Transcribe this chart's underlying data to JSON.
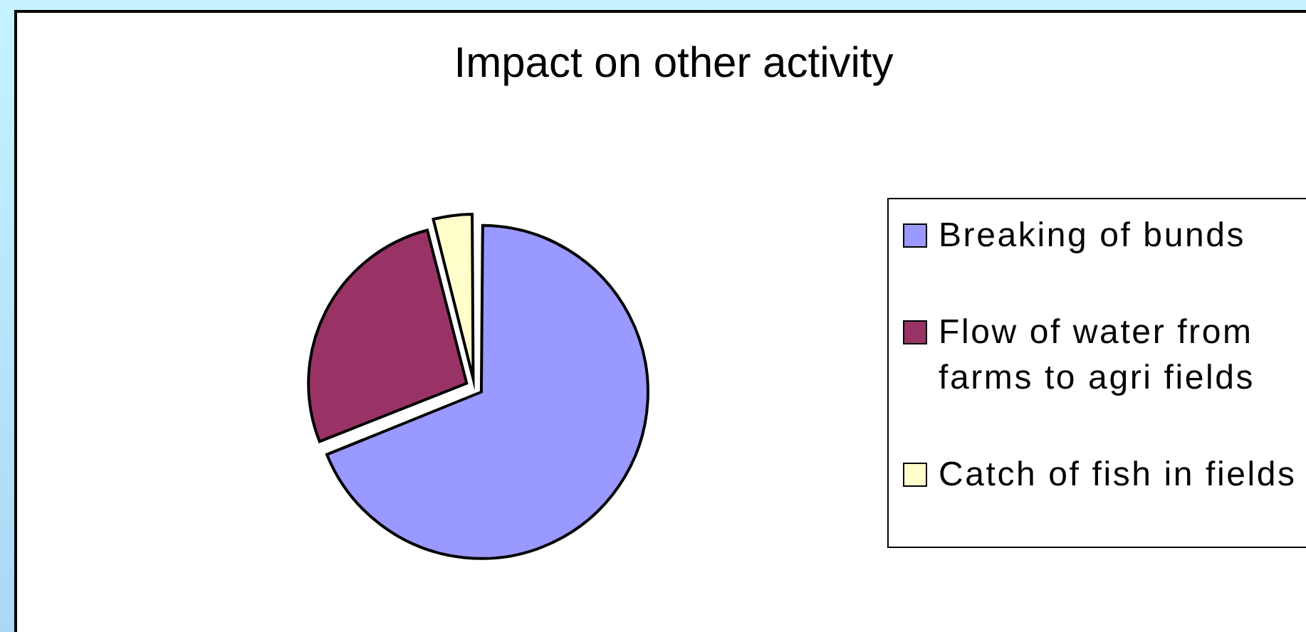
{
  "chart_data": {
    "type": "pie",
    "title": "Impact on other activity",
    "categories": [
      "Breaking of bunds",
      "Flow of water from farms to agri fields",
      "Catch of fish in fields"
    ],
    "values": [
      69,
      27,
      4
    ],
    "colors": [
      "#9999ff",
      "#993366",
      "#ffffcc"
    ],
    "legend": "right"
  }
}
